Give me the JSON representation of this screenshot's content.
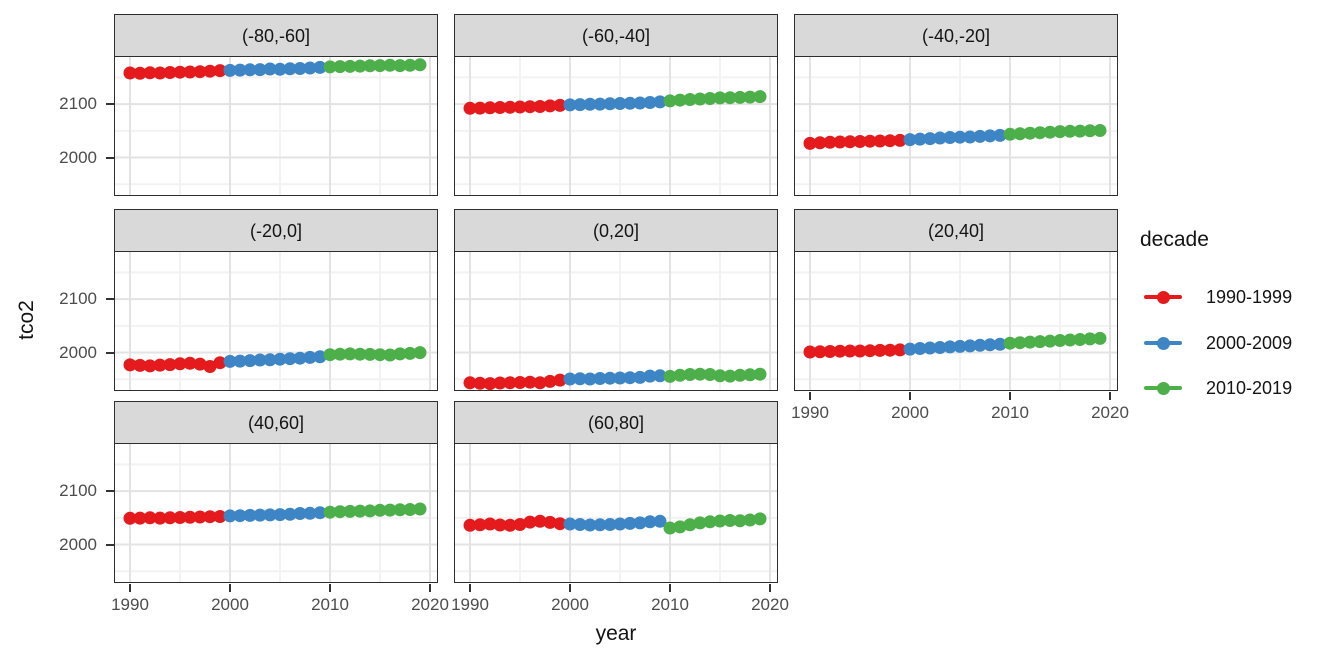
{
  "figure": {
    "xlabel": "year",
    "ylabel": "tco2",
    "background": "#ffffff"
  },
  "legend": {
    "title": "decade",
    "position": "right",
    "entries": [
      {
        "label": "1990-1999",
        "color": "#E41A1C",
        "from": 1990,
        "to": 1999
      },
      {
        "label": "2000-2009",
        "color": "#3D85C4",
        "from": 2000,
        "to": 2009
      },
      {
        "label": "2010-2019",
        "color": "#4DAF4A",
        "from": 2010,
        "to": 2019
      }
    ]
  },
  "chart_data": {
    "type": "scatter",
    "title": "",
    "xlabel": "year",
    "ylabel": "tco2",
    "legend_title": "decade",
    "legend_position": "right",
    "grid": true,
    "xlim": [
      1988.5,
      2020.7
    ],
    "ylim": [
      1930,
      2188
    ],
    "x_ticks": [
      1990,
      2000,
      2010,
      2020
    ],
    "x_minor_ticks": [
      1995,
      2005,
      2015
    ],
    "y_ticks": [
      2000,
      2100
    ],
    "y_minor_ticks": [
      1950,
      2050,
      2150
    ],
    "years": [
      1990,
      1991,
      1992,
      1993,
      1994,
      1995,
      1996,
      1997,
      1998,
      1999,
      2000,
      2001,
      2002,
      2003,
      2004,
      2005,
      2006,
      2007,
      2008,
      2009,
      2010,
      2011,
      2012,
      2013,
      2014,
      2015,
      2016,
      2017,
      2018,
      2019
    ],
    "facets": [
      {
        "label": "(-80,-60]",
        "values": [
          2158,
          2157.5,
          2158.5,
          2158,
          2159,
          2159.5,
          2160,
          2160.5,
          2161.5,
          2162.5,
          2163,
          2163.5,
          2164,
          2164.5,
          2165.5,
          2165,
          2166,
          2166.5,
          2167.5,
          2168.5,
          2169.5,
          2170,
          2170.5,
          2171,
          2171.5,
          2172,
          2172.5,
          2172,
          2172.5,
          2173.5
        ]
      },
      {
        "label": "(-60,-40]",
        "values": [
          2092,
          2092.5,
          2093,
          2093.5,
          2094,
          2094.5,
          2095,
          2095.5,
          2096.5,
          2097.5,
          2098.5,
          2099,
          2099.5,
          2100,
          2100.5,
          2101,
          2101.5,
          2102,
          2103,
          2104,
          2106,
          2107.5,
          2108.5,
          2109.5,
          2110.5,
          2111.5,
          2112,
          2112.5,
          2113,
          2114
        ]
      },
      {
        "label": "(-40,-20]",
        "values": [
          2026.5,
          2027.5,
          2028.5,
          2029,
          2029.5,
          2030,
          2030.5,
          2031,
          2031.5,
          2032,
          2033.5,
          2034.5,
          2035.5,
          2036.5,
          2037.5,
          2038,
          2038.5,
          2039.5,
          2040.5,
          2041.5,
          2043.5,
          2044.5,
          2045.5,
          2046.5,
          2047.5,
          2048.5,
          2049,
          2049.5,
          2050,
          2050.5
        ]
      },
      {
        "label": "(-20,0]",
        "values": [
          1977,
          1976,
          1975,
          1976.5,
          1977.5,
          1979,
          1980,
          1978.5,
          1974,
          1981,
          1983.5,
          1984,
          1985,
          1986,
          1986.5,
          1987.5,
          1988.5,
          1989.5,
          1991,
          1992,
          1996,
          1997,
          1997.5,
          1997,
          1996.5,
          1996,
          1995.5,
          1997.5,
          1998.5,
          2000
        ]
      },
      {
        "label": "(0,20]",
        "values": [
          1943.5,
          1942.5,
          1942,
          1943,
          1943.5,
          1944,
          1944.5,
          1943.5,
          1946,
          1948.5,
          1950.5,
          1951,
          1950.5,
          1951.5,
          1952,
          1952.5,
          1953,
          1953.5,
          1956,
          1956.5,
          1955.5,
          1957.5,
          1959,
          1959.5,
          1959,
          1956.5,
          1956,
          1957.5,
          1958.5,
          1959.5
        ]
      },
      {
        "label": "(20,40]",
        "values": [
          2001,
          2001.5,
          2002,
          2002.5,
          2003,
          2003,
          2003.5,
          2004,
          2004.5,
          2005,
          2006.5,
          2007.5,
          2008.5,
          2009.5,
          2010.5,
          2011.5,
          2012.5,
          2013.5,
          2014.5,
          2015.5,
          2017.5,
          2018.5,
          2019.5,
          2020.5,
          2021.5,
          2022.5,
          2023.5,
          2024.5,
          2025.5,
          2026.5
        ]
      },
      {
        "label": "(40,60]",
        "values": [
          2049,
          2049.5,
          2050,
          2049.5,
          2050,
          2050.5,
          2051,
          2051.5,
          2052,
          2052.5,
          2053.5,
          2054,
          2054.5,
          2055,
          2055.5,
          2056,
          2056.5,
          2058,
          2058.5,
          2059.5,
          2060.5,
          2061.5,
          2062,
          2062.5,
          2063,
          2064,
          2064.5,
          2065,
          2065.5,
          2066.5
        ]
      },
      {
        "label": "(60,80]",
        "values": [
          2036,
          2037,
          2038.5,
          2036.5,
          2036,
          2037.5,
          2042,
          2043.5,
          2041.5,
          2039,
          2038.5,
          2037.5,
          2036.5,
          2037,
          2037.5,
          2038.5,
          2039.5,
          2040.5,
          2042.5,
          2043.5,
          2031,
          2033,
          2037,
          2040.5,
          2042.5,
          2044,
          2045,
          2044.5,
          2046,
          2048
        ]
      }
    ]
  }
}
